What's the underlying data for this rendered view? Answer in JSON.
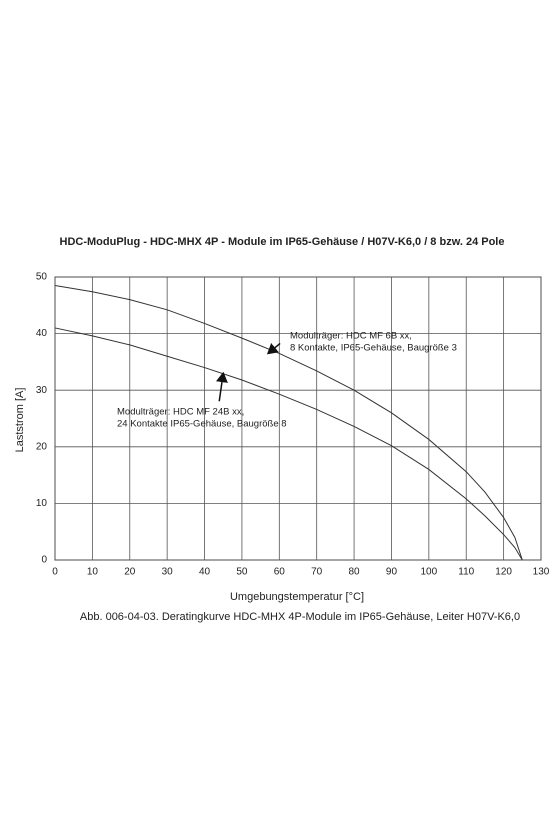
{
  "chart_data": {
    "type": "line",
    "title": "HDC-ModuPlug - HDC-MHX 4P - Module im IP65-Gehäuse / H07V-K6,0 / 8 bzw. 24 Pole",
    "x_label": "Umgebungstemperatur [°C]",
    "y_label": "Laststrom [A]",
    "caption": "Abb. 006-04-03. Deratingkurve HDC-MHX 4P-Module im IP65-Gehäuse, Leiter H07V-K6,0",
    "x": [
      0,
      10,
      20,
      30,
      40,
      50,
      60,
      70,
      80,
      90,
      100,
      110,
      115,
      120,
      123,
      125
    ],
    "series": [
      {
        "color": "#333333",
        "values": [
          48.5,
          47.4,
          46,
          44.2,
          41.8,
          39.2,
          36.5,
          33.4,
          30,
          26,
          21.3,
          15.6,
          12,
          7.5,
          4,
          0
        ]
      },
      {
        "color": "#333333",
        "values": [
          41,
          39.6,
          38,
          36,
          34,
          31.8,
          29.3,
          26.6,
          23.6,
          20.2,
          16,
          10.8,
          7.8,
          4.5,
          2.2,
          0
        ]
      }
    ],
    "annotations": [
      {
        "lines": [
          "Modulträger: HDC MF 6B xx,",
          "8 Kontakte, IP65-Gehäuse, Baugröße 3"
        ],
        "x": 57,
        "y": 36.5
      },
      {
        "lines": [
          "Modulträger: HDC MF 24B xx,",
          "24 Kontakte IP65-Gehäuse, Baugröße 8"
        ],
        "x": 45,
        "y": 33
      }
    ],
    "xlim": [
      0,
      130
    ],
    "ylim": [
      0,
      50
    ],
    "xticks": [
      0,
      10,
      20,
      30,
      40,
      50,
      60,
      70,
      80,
      90,
      100,
      110,
      120,
      130
    ],
    "yticks": [
      0,
      10,
      20,
      30,
      40,
      50
    ],
    "grid": true
  }
}
